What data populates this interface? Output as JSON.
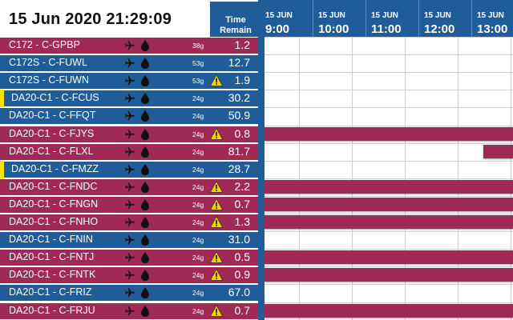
{
  "clock": "15 Jun 2020 21:29:09",
  "time_header": {
    "line1": "Time",
    "line2": "Remain"
  },
  "timeline": {
    "hours": [
      {
        "date": "15 JUN",
        "hour": "9:00"
      },
      {
        "date": "15 JUN",
        "hour": "10:00"
      },
      {
        "date": "15 JUN",
        "hour": "11:00"
      },
      {
        "date": "15 JUN",
        "hour": "12:00"
      },
      {
        "date": "15 JUN",
        "hour": "13:00"
      }
    ]
  },
  "colors": {
    "maroon": "#9e2a55",
    "blue": "#1f5c98",
    "flag": "#f2e600",
    "warn": "#f5d300"
  },
  "aircraft": [
    {
      "name": "C172 - C-GPBP",
      "fuel": "38g",
      "warn": false,
      "time": "1.2",
      "color": "maroon",
      "flag": false,
      "plane": "plane-icon",
      "drop": "fuel-drop-icon"
    },
    {
      "name": "C172S - C-FUWL",
      "fuel": "53g",
      "warn": false,
      "time": "12.7",
      "color": "blue",
      "flag": false,
      "plane": "plane-icon",
      "drop": "fuel-drop-icon"
    },
    {
      "name": "C172S - C-FUWN",
      "fuel": "53g",
      "warn": true,
      "time": "1.9",
      "color": "blue",
      "flag": false,
      "plane": "plane-icon",
      "drop": "fuel-drop-icon"
    },
    {
      "name": "DA20-C1 - C-FCUS",
      "fuel": "24g",
      "warn": false,
      "time": "30.2",
      "color": "blue",
      "flag": true,
      "plane": "plane-icon",
      "drop": "fuel-drop-icon"
    },
    {
      "name": "DA20-C1 - C-FFQT",
      "fuel": "24g",
      "warn": false,
      "time": "50.9",
      "color": "blue",
      "flag": false,
      "plane": "plane-icon",
      "drop": "fuel-drop-icon"
    },
    {
      "name": "DA20-C1 - C-FJYS",
      "fuel": "24g",
      "warn": true,
      "time": "0.8",
      "color": "maroon",
      "flag": false,
      "plane": "plane-icon",
      "drop": "fuel-drop-icon"
    },
    {
      "name": "DA20-C1 - C-FLXL",
      "fuel": "24g",
      "warn": false,
      "time": "81.7",
      "color": "maroon",
      "flag": false,
      "plane": "plane-icon",
      "drop": "fuel-drop-icon"
    },
    {
      "name": "DA20-C1 - C-FMZZ",
      "fuel": "24g",
      "warn": false,
      "time": "28.7",
      "color": "blue",
      "flag": true,
      "plane": "plane-icon",
      "drop": "fuel-drop-icon"
    },
    {
      "name": "DA20-C1 - C-FNDC",
      "fuel": "24g",
      "warn": true,
      "time": "2.2",
      "color": "maroon",
      "flag": false,
      "plane": "plane-icon",
      "drop": "fuel-drop-icon"
    },
    {
      "name": "DA20-C1 - C-FNGN",
      "fuel": "24g",
      "warn": true,
      "time": "0.7",
      "color": "maroon",
      "flag": false,
      "plane": "plane-icon",
      "drop": "fuel-drop-icon"
    },
    {
      "name": "DA20-C1 - C-FNHO",
      "fuel": "24g",
      "warn": true,
      "time": "1.3",
      "color": "maroon",
      "flag": false,
      "plane": "plane-icon",
      "drop": "fuel-drop-icon"
    },
    {
      "name": "DA20-C1 - C-FNIN",
      "fuel": "24g",
      "warn": false,
      "time": "31.0",
      "color": "blue",
      "flag": false,
      "plane": "plane-icon",
      "drop": "fuel-drop-icon"
    },
    {
      "name": "DA20-C1 - C-FNTJ",
      "fuel": "24g",
      "warn": true,
      "time": "0.5",
      "color": "maroon",
      "flag": false,
      "plane": "plane-icon",
      "drop": "fuel-drop-icon"
    },
    {
      "name": "DA20-C1 - C-FNTK",
      "fuel": "24g",
      "warn": true,
      "time": "0.9",
      "color": "maroon",
      "flag": false,
      "plane": "plane-icon",
      "drop": "fuel-drop-icon"
    },
    {
      "name": "DA20-C1 - C-FRIZ",
      "fuel": "24g",
      "warn": false,
      "time": "67.0",
      "color": "blue",
      "flag": false,
      "plane": "plane-icon",
      "drop": "fuel-drop-icon"
    },
    {
      "name": "DA20-C1 - C-FRJU",
      "fuel": "24g",
      "warn": true,
      "time": "0.7",
      "color": "maroon",
      "flag": false,
      "plane": "plane-icon",
      "drop": "fuel-drop-icon"
    }
  ],
  "bookings": [
    {
      "row": 5,
      "start": "8:30",
      "end": "14:00"
    },
    {
      "row": 6,
      "start": "12:56",
      "end": "14:00"
    },
    {
      "row": 8,
      "start": "8:30",
      "end": "14:00"
    },
    {
      "row": 9,
      "start": "8:30",
      "end": "14:00"
    },
    {
      "row": 10,
      "start": "8:30",
      "end": "14:00"
    },
    {
      "row": 12,
      "start": "8:30",
      "end": "14:00"
    },
    {
      "row": 13,
      "start": "8:30",
      "end": "14:00"
    },
    {
      "row": 15,
      "start": "8:30",
      "end": "14:00"
    }
  ]
}
